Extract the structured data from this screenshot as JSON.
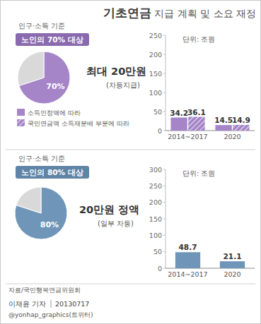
{
  "header": {
    "title_strong": "기초연금",
    "title_rest": "지급 계획 및 소요 재정"
  },
  "panels": [
    {
      "criterion": "인구·소득 기준",
      "badge": "노인의 70% 대상",
      "amount": "최대 20만원",
      "amount_note": "(차등지급)"
    },
    {
      "criterion": "인구·소득 기준",
      "badge": "노인의 80% 대상",
      "amount": "20만원 정액",
      "amount_note": "(일부 차등)"
    }
  ],
  "chart_data": [
    {
      "type": "pie",
      "values": [
        70,
        30
      ],
      "value_labels": [
        "70%",
        null
      ],
      "colors": [
        "#a585c8",
        "#d9d9d9"
      ]
    },
    {
      "type": "bar",
      "subtitle": "단위: 조원",
      "categories": [
        "2014~2017",
        "2020"
      ],
      "series": [
        {
          "name": "소득인정액에 따라",
          "color": "#a585c8",
          "values": [
            34.2,
            14.5
          ]
        },
        {
          "name": "국민연금액 소득재분배 부분에 따라",
          "color": "#a585c8",
          "line_style": "hatched",
          "values": [
            36.1,
            14.9
          ]
        }
      ],
      "ylim": [
        0,
        250
      ],
      "yticks": [
        0,
        50,
        100,
        150,
        200,
        250
      ],
      "data_labels": true
    },
    {
      "type": "pie",
      "values": [
        80,
        20
      ],
      "value_labels": [
        "80%",
        null
      ],
      "colors": [
        "#6f95b8",
        "#d9d9d9"
      ]
    },
    {
      "type": "bar",
      "subtitle": "단위: 조원",
      "categories": [
        "2014~2017",
        "2020"
      ],
      "values": [
        48.7,
        21.1
      ],
      "color": "#6f95b8",
      "ylim": [
        0,
        300
      ],
      "yticks": [
        0,
        50,
        100,
        150,
        200,
        250,
        300
      ],
      "data_labels": true
    }
  ],
  "footer": {
    "source": "자료/국민행복연금위원회",
    "reporter": "이재윤 기자",
    "date": "20130717",
    "handle": "@yonhap_graphics(트위터)"
  }
}
